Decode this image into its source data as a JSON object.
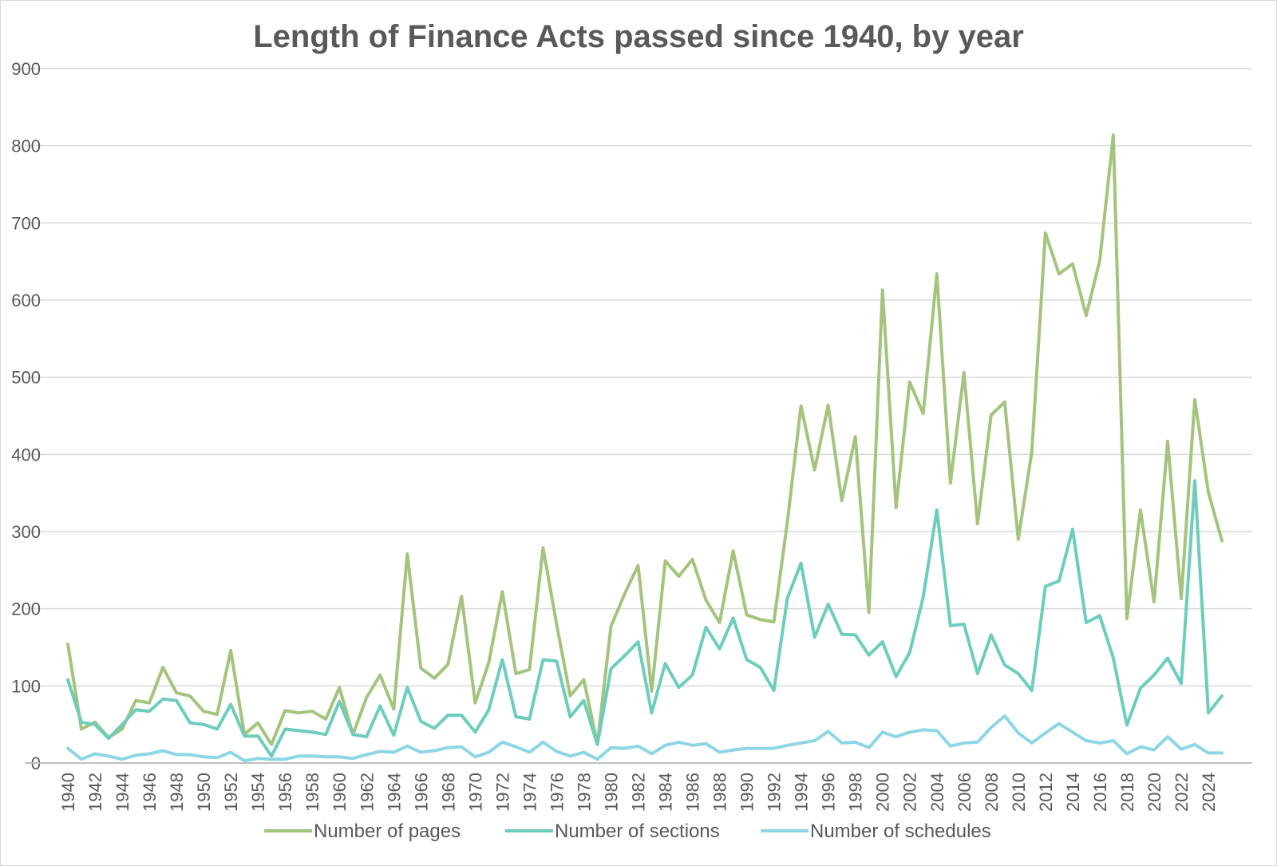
{
  "chart_data": {
    "type": "line",
    "title": "Length of Finance Acts passed since 1940, by year",
    "xlabel": "",
    "ylabel": "",
    "ylim": [
      0,
      900
    ],
    "yticks": [
      "0",
      "100",
      "200",
      "300",
      "400",
      "500",
      "600",
      "700",
      "800",
      "900"
    ],
    "ytick_values": [
      0,
      100,
      200,
      300,
      400,
      500,
      600,
      700,
      800,
      900
    ],
    "x": [
      1940,
      1941,
      1942,
      1943,
      1944,
      1945,
      1946,
      1947,
      1948,
      1949,
      1950,
      1951,
      1952,
      1953,
      1954,
      1955,
      1956,
      1957,
      1958,
      1959,
      1960,
      1961,
      1962,
      1963,
      1964,
      1965,
      1966,
      1967,
      1968,
      1969,
      1970,
      1971,
      1972,
      1973,
      1974,
      1975,
      1976,
      1977,
      1978,
      1979,
      1980,
      1981,
      1982,
      1983,
      1984,
      1985,
      1986,
      1987,
      1988,
      1989,
      1990,
      1991,
      1992,
      1993,
      1994,
      1995,
      1996,
      1997,
      1998,
      1999,
      2000,
      2001,
      2002,
      2003,
      2004,
      2005,
      2006,
      2007,
      2008,
      2009,
      2010,
      2011,
      2012,
      2013,
      2014,
      2015,
      2016,
      2017,
      2018,
      2019,
      2020,
      2021,
      2022,
      2023,
      2024,
      2025
    ],
    "xtick_labels": [
      "1940",
      "1942",
      "1944",
      "1946",
      "1948",
      "1950",
      "1952",
      "1954",
      "1956",
      "1958",
      "1960",
      "1962",
      "1964",
      "1966",
      "1968",
      "1970",
      "1972",
      "1974",
      "1976",
      "1978",
      "1980",
      "1982",
      "1984",
      "1986",
      "1988",
      "1990",
      "1992",
      "1994",
      "1996",
      "1998",
      "2000",
      "2002",
      "2004",
      "2006",
      "2008",
      "2010",
      "2012",
      "2014",
      "2016",
      "2018",
      "2020",
      "2022",
      "2024"
    ],
    "xtick_values": [
      1940,
      1942,
      1944,
      1946,
      1948,
      1950,
      1952,
      1954,
      1956,
      1958,
      1960,
      1962,
      1964,
      1966,
      1968,
      1970,
      1972,
      1974,
      1976,
      1978,
      1980,
      1982,
      1984,
      1986,
      1988,
      1990,
      1992,
      1994,
      1996,
      1998,
      2000,
      2002,
      2004,
      2006,
      2008,
      2010,
      2012,
      2014,
      2016,
      2018,
      2020,
      2022,
      2024
    ],
    "legend_position": "bottom",
    "grid": true,
    "series": [
      {
        "name": "Number of pages",
        "color": "#a3c47d",
        "values": [
          154,
          44,
          53,
          33,
          44,
          81,
          78,
          124,
          91,
          87,
          67,
          63,
          146,
          37,
          52,
          24,
          68,
          65,
          67,
          57,
          98,
          37,
          85,
          114,
          70,
          271,
          123,
          110,
          128,
          216,
          78,
          130,
          222,
          116,
          121,
          279,
          180,
          87,
          108,
          25,
          177,
          219,
          256,
          93,
          262,
          242,
          264,
          211,
          182,
          275,
          192,
          186,
          183,
          313,
          463,
          380,
          464,
          340,
          423,
          195,
          613,
          331,
          494,
          453,
          634,
          363,
          506,
          310,
          451,
          468,
          290,
          403,
          687,
          634,
          647,
          580,
          651,
          814,
          187,
          328,
          209,
          417,
          213,
          471,
          351,
          288
        ]
      },
      {
        "name": "Number of sections",
        "color": "#6dcdbd",
        "values": [
          108,
          53,
          50,
          32,
          50,
          69,
          67,
          83,
          81,
          52,
          50,
          44,
          76,
          35,
          35,
          9,
          44,
          42,
          40,
          37,
          80,
          37,
          34,
          74,
          36,
          98,
          54,
          45,
          62,
          62,
          40,
          69,
          134,
          60,
          57,
          134,
          132,
          60,
          81,
          24,
          122,
          139,
          157,
          65,
          129,
          98,
          114,
          176,
          148,
          188,
          134,
          124,
          94,
          214,
          259,
          163,
          206,
          167,
          166,
          140,
          157,
          112,
          143,
          215,
          328,
          178,
          180,
          116,
          166,
          127,
          116,
          94,
          229,
          236,
          303,
          182,
          191,
          136,
          49,
          97,
          114,
          136,
          103,
          366,
          65,
          87
        ]
      },
      {
        "name": "Number of schedules",
        "color": "#8dd6e4",
        "values": [
          19,
          5,
          12,
          9,
          5,
          10,
          12,
          16,
          11,
          11,
          8,
          7,
          14,
          3,
          6,
          5,
          5,
          9,
          9,
          8,
          8,
          6,
          11,
          15,
          14,
          22,
          14,
          16,
          20,
          21,
          8,
          14,
          27,
          21,
          14,
          27,
          15,
          9,
          14,
          5,
          20,
          19,
          22,
          12,
          23,
          27,
          23,
          25,
          14,
          17,
          19,
          19,
          19,
          23,
          26,
          29,
          41,
          26,
          27,
          20,
          40,
          34,
          40,
          43,
          42,
          22,
          26,
          27,
          46,
          61,
          39,
          26,
          39,
          51,
          40,
          29,
          26,
          29,
          12,
          21,
          17,
          34,
          18,
          24,
          13,
          13
        ]
      }
    ]
  }
}
